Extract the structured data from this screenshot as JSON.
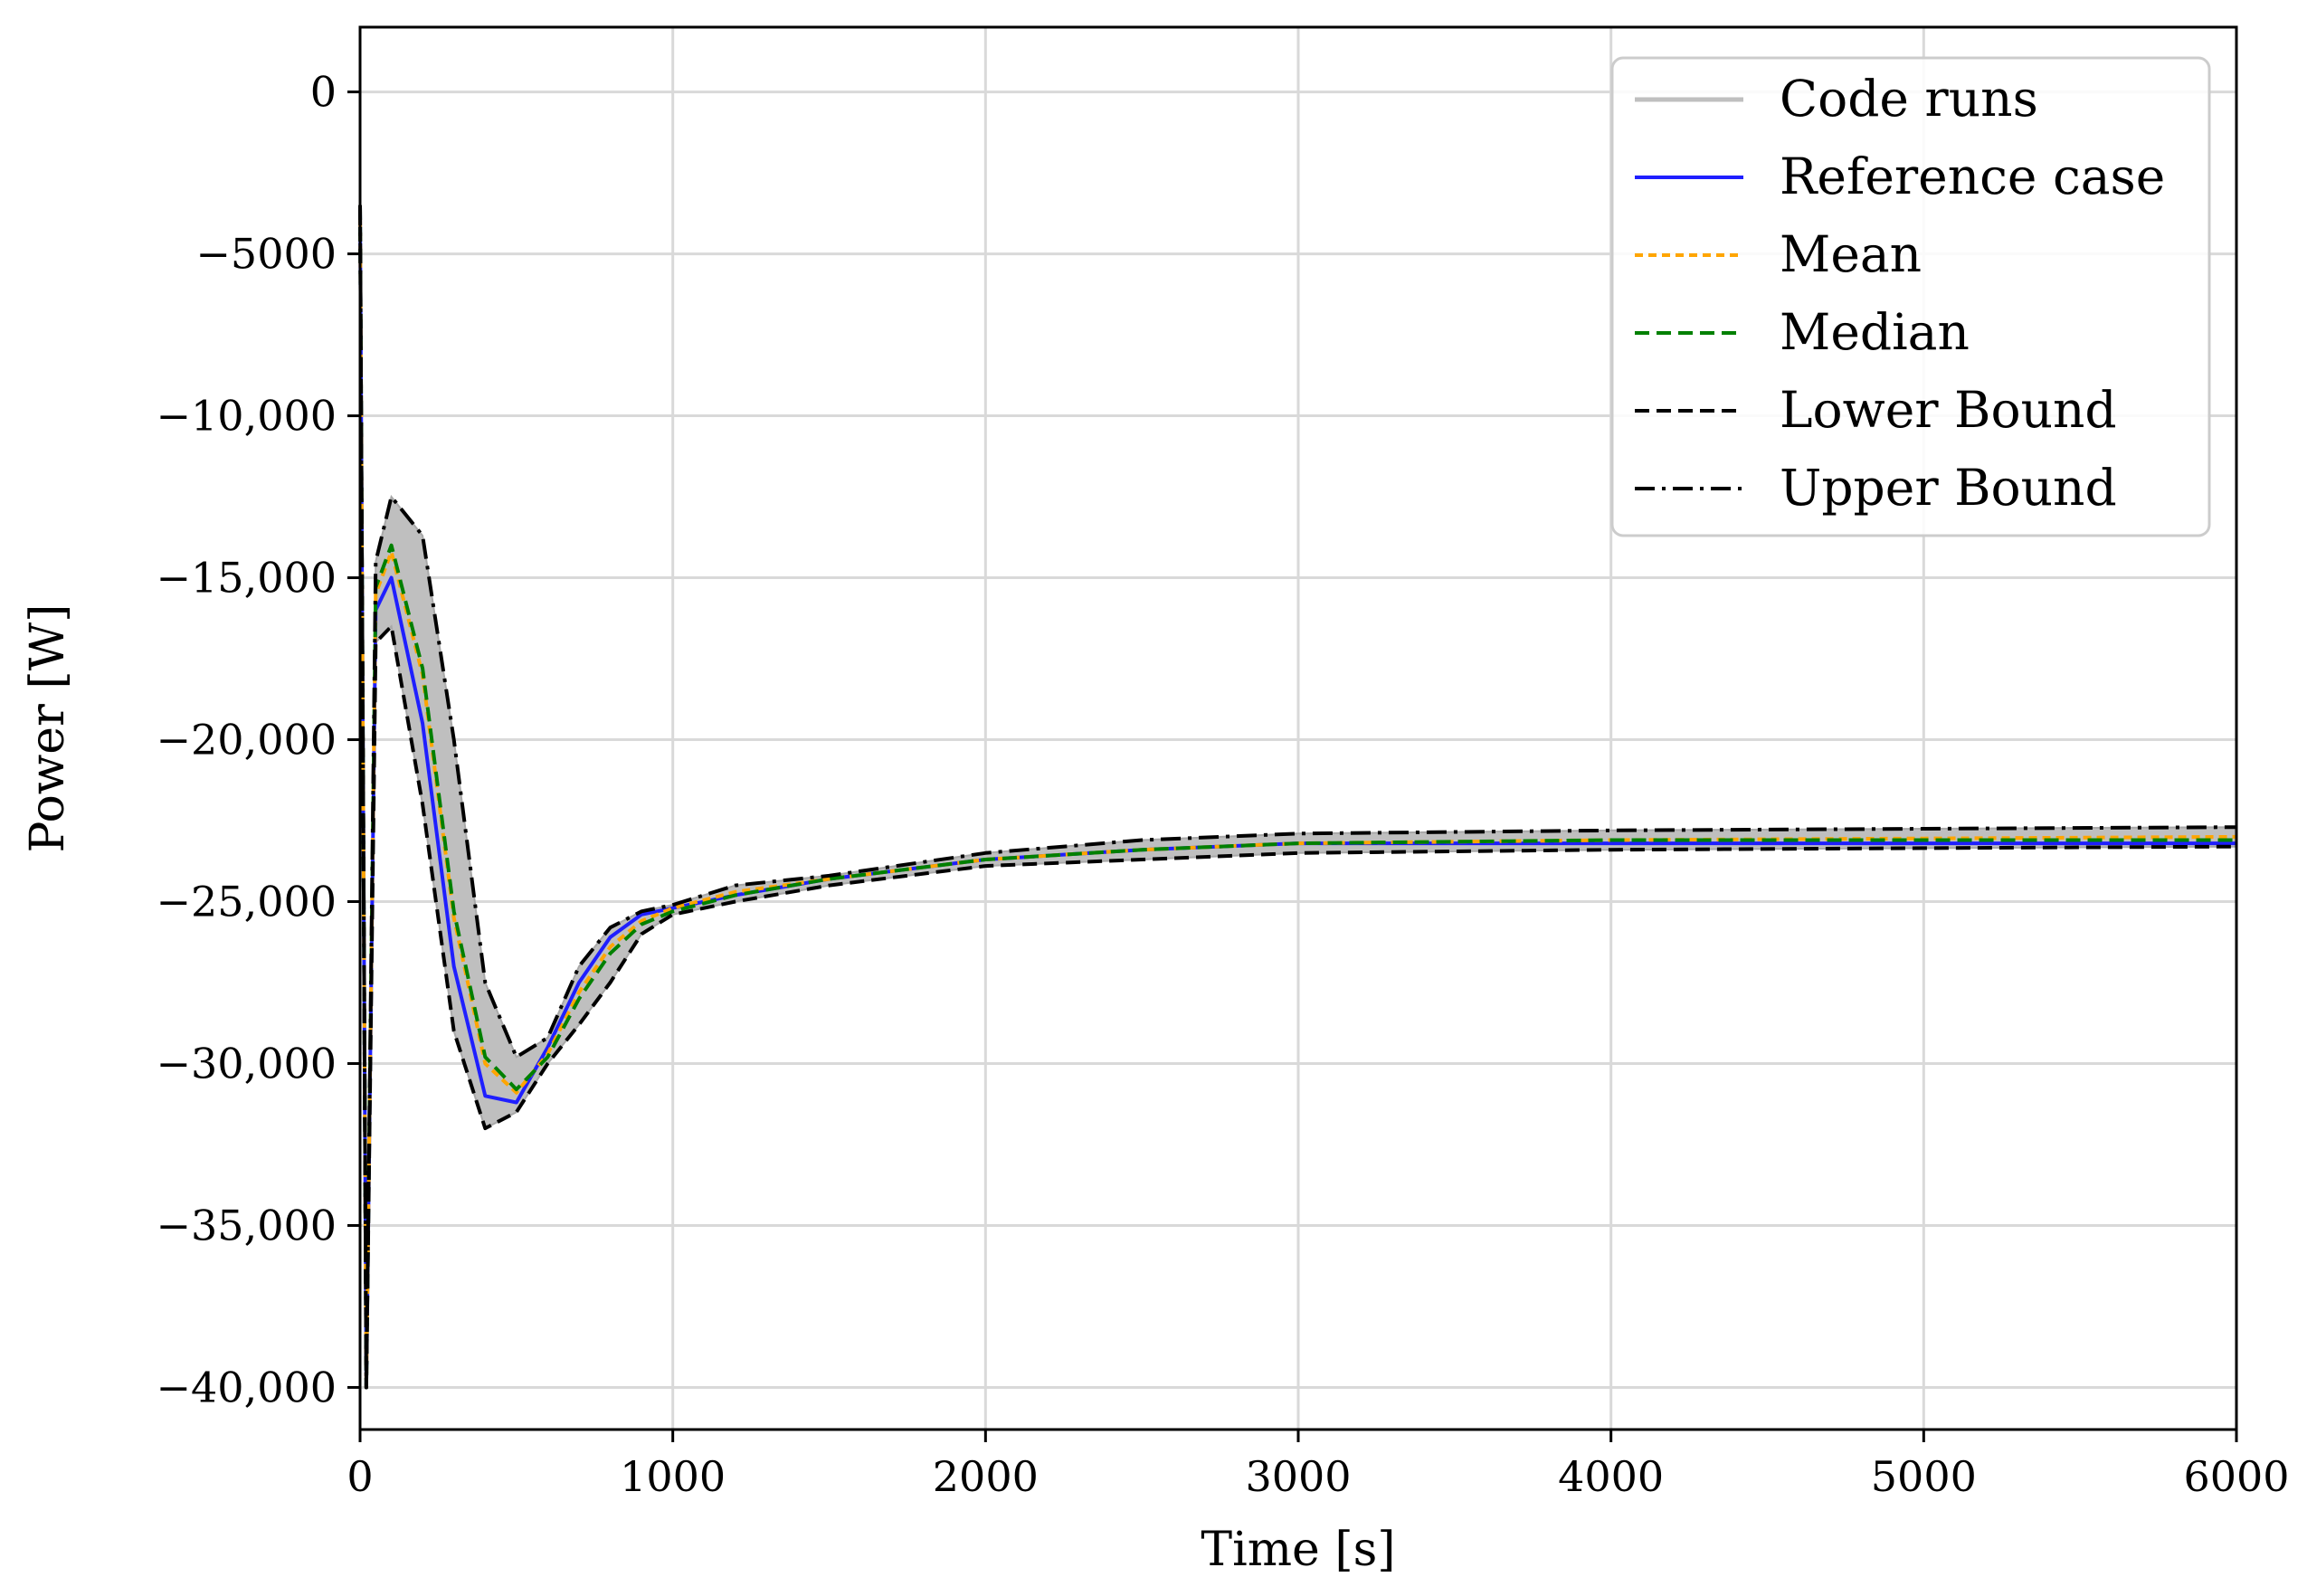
{
  "chart_data": {
    "type": "line",
    "title": "",
    "xlabel": "Time [s]",
    "ylabel": "Power [W]",
    "xlim": [
      0,
      6000
    ],
    "ylim": [
      -41300,
      2000
    ],
    "grid": true,
    "legend_position": "top-right",
    "x_ticks": [
      0,
      1000,
      2000,
      3000,
      4000,
      5000,
      6000
    ],
    "x_tick_labels": [
      "0",
      "1000",
      "2000",
      "3000",
      "4000",
      "5000",
      "6000"
    ],
    "y_ticks": [
      0,
      -5000,
      -10000,
      -15000,
      -20000,
      -25000,
      -30000,
      -35000,
      -40000
    ],
    "y_tick_labels": [
      "0",
      "−5000",
      "−10,000",
      "−15,000",
      "−20,000",
      "−25,000",
      "−30,000",
      "−35,000",
      "−40,000"
    ],
    "band": {
      "name": "Code runs",
      "color": "#bfbfbf",
      "x": [
        0,
        20,
        50,
        100,
        200,
        300,
        400,
        500,
        600,
        700,
        800,
        900,
        1000,
        1200,
        1500,
        2000,
        2500,
        3000,
        4000,
        5000,
        6000
      ],
      "upper": [
        -3500,
        -40000,
        -14500,
        -12500,
        -13700,
        -20000,
        -27500,
        -29800,
        -29200,
        -27000,
        -25800,
        -25300,
        -25100,
        -24500,
        -24200,
        -23500,
        -23100,
        -22900,
        -22800,
        -22750,
        -22700
      ],
      "lower": [
        -3500,
        -40000,
        -17000,
        -16500,
        -22000,
        -29000,
        -32000,
        -31500,
        -30000,
        -28800,
        -27500,
        -26000,
        -25400,
        -25000,
        -24500,
        -23900,
        -23700,
        -23500,
        -23400,
        -23350,
        -23300
      ]
    },
    "series": [
      {
        "name": "Reference case",
        "color": "#1f1fff",
        "dash": "solid",
        "x": [
          0,
          20,
          50,
          100,
          200,
          300,
          400,
          500,
          600,
          700,
          800,
          900,
          1000,
          1200,
          1500,
          2000,
          2500,
          3000,
          4000,
          5000,
          6000
        ],
        "y": [
          -3500,
          -40000,
          -16000,
          -15000,
          -19500,
          -27000,
          -31000,
          -31200,
          -29500,
          -27500,
          -26100,
          -25400,
          -25200,
          -24800,
          -24300,
          -23700,
          -23400,
          -23200,
          -23200,
          -23200,
          -23200
        ]
      },
      {
        "name": "Mean",
        "color": "#ffa500",
        "dash": "9,6",
        "x": [
          0,
          20,
          50,
          100,
          200,
          300,
          400,
          500,
          600,
          700,
          800,
          900,
          1000,
          1200,
          1500,
          2000,
          2500,
          3000,
          4000,
          5000,
          6000
        ],
        "y": [
          -3500,
          -40000,
          -15500,
          -14200,
          -18000,
          -25500,
          -30000,
          -30900,
          -29700,
          -27800,
          -26400,
          -25600,
          -25200,
          -24700,
          -24300,
          -23700,
          -23400,
          -23200,
          -23100,
          -23050,
          -23000
        ]
      },
      {
        "name": "Median",
        "color": "#008000",
        "dash": "16,8",
        "x": [
          0,
          20,
          50,
          100,
          200,
          300,
          400,
          500,
          600,
          700,
          800,
          900,
          1000,
          1200,
          1500,
          2000,
          2500,
          3000,
          4000,
          5000,
          6000
        ],
        "y": [
          -3500,
          -40000,
          -15300,
          -14000,
          -17800,
          -25300,
          -29800,
          -30800,
          -29800,
          -28000,
          -26600,
          -25700,
          -25300,
          -24800,
          -24300,
          -23700,
          -23400,
          -23200,
          -23100,
          -23100,
          -23100
        ]
      },
      {
        "name": "Lower Bound",
        "color": "#000000",
        "dash": "16,8",
        "x": [
          0,
          20,
          50,
          100,
          200,
          300,
          400,
          500,
          600,
          700,
          800,
          900,
          1000,
          1200,
          1500,
          2000,
          2500,
          3000,
          4000,
          5000,
          6000
        ],
        "y": [
          -3500,
          -40000,
          -17000,
          -16500,
          -22000,
          -29000,
          -32000,
          -31500,
          -30000,
          -28800,
          -27500,
          -26000,
          -25400,
          -25000,
          -24500,
          -23900,
          -23700,
          -23500,
          -23400,
          -23350,
          -23300
        ]
      },
      {
        "name": "Upper Bound",
        "color": "#000000",
        "dash": "22,8,4,8",
        "x": [
          0,
          20,
          50,
          100,
          200,
          300,
          400,
          500,
          600,
          700,
          800,
          900,
          1000,
          1200,
          1500,
          2000,
          2500,
          3000,
          4000,
          5000,
          6000
        ],
        "y": [
          -3500,
          -40000,
          -14500,
          -12500,
          -13700,
          -20000,
          -27500,
          -29800,
          -29200,
          -27000,
          -25800,
          -25300,
          -25100,
          -24500,
          -24200,
          -23500,
          -23100,
          -22900,
          -22800,
          -22750,
          -22700
        ]
      }
    ]
  }
}
